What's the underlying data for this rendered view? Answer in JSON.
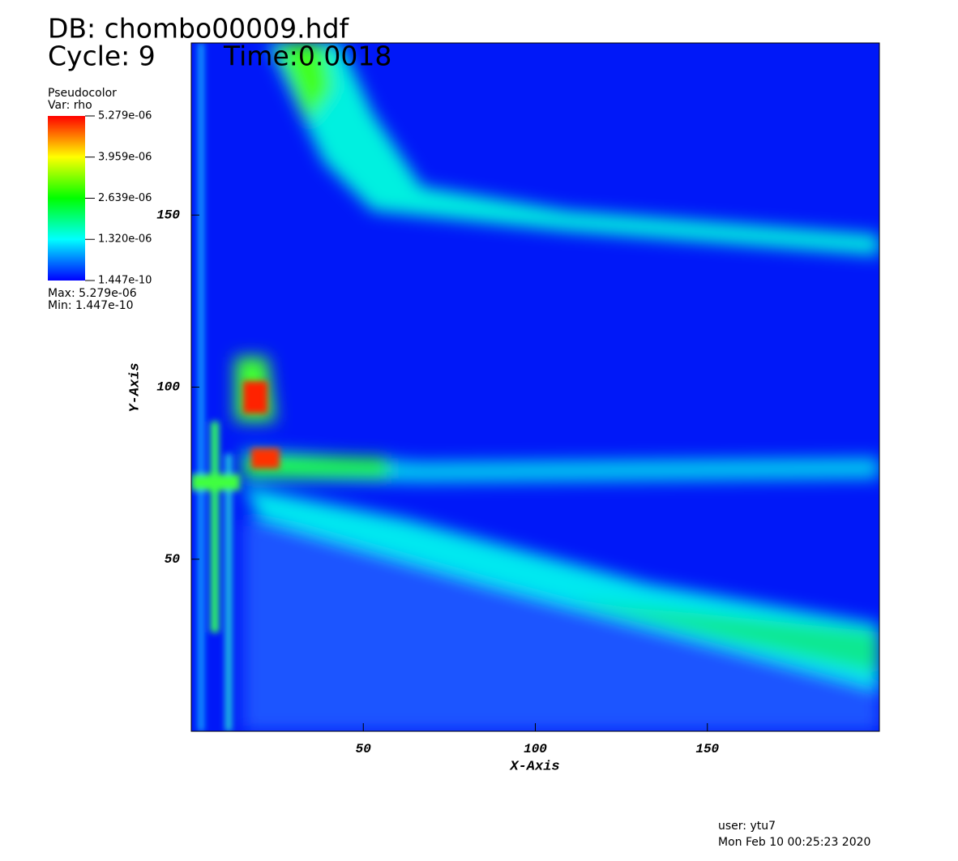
{
  "header": {
    "db": "DB: chombo00009.hdf",
    "cycle": "Cycle: 9",
    "time": "Time:0.0018"
  },
  "legend": {
    "plot": "Pseudocolor",
    "var": "Var: rho",
    "ticks": [
      {
        "value": 5.279e-06,
        "label": "5.279e-06"
      },
      {
        "value": 3.959e-06,
        "label": "3.959e-06"
      },
      {
        "value": 2.639e-06,
        "label": "2.639e-06"
      },
      {
        "value": 1.32e-06,
        "label": "1.320e-06"
      },
      {
        "value": 1.447e-10,
        "label": "1.447e-10"
      }
    ],
    "max": "Max: 5.279e-06",
    "min": "Min: 1.447e-10"
  },
  "chart_data": {
    "type": "heatmap",
    "x_label": "X-Axis",
    "y_label": "Y-Axis",
    "xlim": [
      0,
      200
    ],
    "ylim": [
      0,
      200
    ],
    "xticks": [
      50,
      100,
      150
    ],
    "yticks": [
      50,
      100,
      150
    ]
  },
  "footer": {
    "user": "user: ytu7",
    "date": "Mon Feb 10 00:25:23 2020"
  }
}
